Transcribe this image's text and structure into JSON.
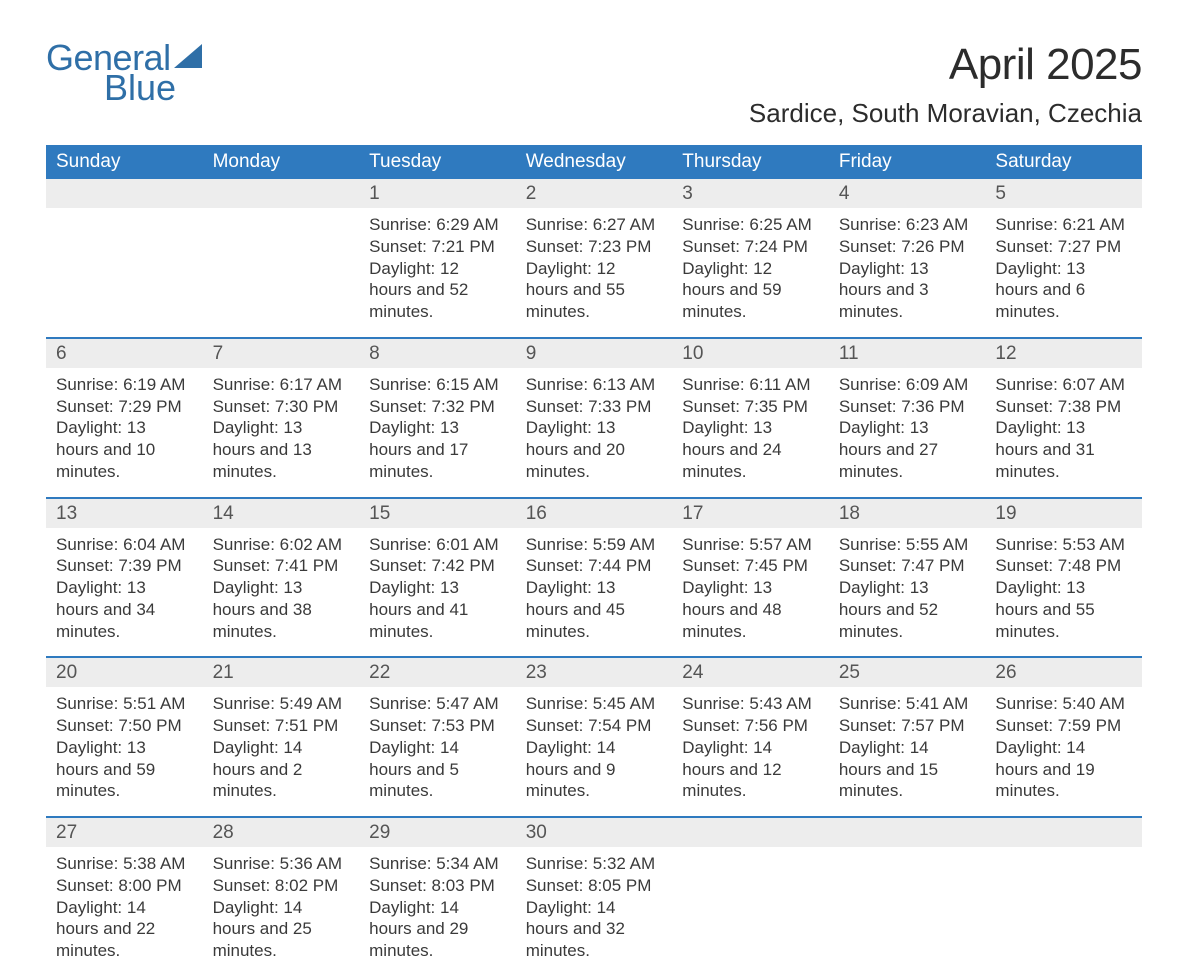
{
  "brand": {
    "word1": "General",
    "word2": "Blue",
    "color": "#2f6fa7",
    "sail_color": "#2f6fa7"
  },
  "title": "April 2025",
  "location": "Sardice, South Moravian, Czechia",
  "colors": {
    "header_bg": "#2f7abf",
    "header_text": "#ffffff",
    "daynum_bg": "#ededed",
    "week_divider": "#2f7abf",
    "body_text": "#3a3a3a",
    "page_bg": "#ffffff"
  },
  "day_headers": [
    "Sunday",
    "Monday",
    "Tuesday",
    "Wednesday",
    "Thursday",
    "Friday",
    "Saturday"
  ],
  "weeks": [
    [
      null,
      null,
      {
        "n": "1",
        "sunrise": "6:29 AM",
        "sunset": "7:21 PM",
        "daylight": "12 hours and 52 minutes."
      },
      {
        "n": "2",
        "sunrise": "6:27 AM",
        "sunset": "7:23 PM",
        "daylight": "12 hours and 55 minutes."
      },
      {
        "n": "3",
        "sunrise": "6:25 AM",
        "sunset": "7:24 PM",
        "daylight": "12 hours and 59 minutes."
      },
      {
        "n": "4",
        "sunrise": "6:23 AM",
        "sunset": "7:26 PM",
        "daylight": "13 hours and 3 minutes."
      },
      {
        "n": "5",
        "sunrise": "6:21 AM",
        "sunset": "7:27 PM",
        "daylight": "13 hours and 6 minutes."
      }
    ],
    [
      {
        "n": "6",
        "sunrise": "6:19 AM",
        "sunset": "7:29 PM",
        "daylight": "13 hours and 10 minutes."
      },
      {
        "n": "7",
        "sunrise": "6:17 AM",
        "sunset": "7:30 PM",
        "daylight": "13 hours and 13 minutes."
      },
      {
        "n": "8",
        "sunrise": "6:15 AM",
        "sunset": "7:32 PM",
        "daylight": "13 hours and 17 minutes."
      },
      {
        "n": "9",
        "sunrise": "6:13 AM",
        "sunset": "7:33 PM",
        "daylight": "13 hours and 20 minutes."
      },
      {
        "n": "10",
        "sunrise": "6:11 AM",
        "sunset": "7:35 PM",
        "daylight": "13 hours and 24 minutes."
      },
      {
        "n": "11",
        "sunrise": "6:09 AM",
        "sunset": "7:36 PM",
        "daylight": "13 hours and 27 minutes."
      },
      {
        "n": "12",
        "sunrise": "6:07 AM",
        "sunset": "7:38 PM",
        "daylight": "13 hours and 31 minutes."
      }
    ],
    [
      {
        "n": "13",
        "sunrise": "6:04 AM",
        "sunset": "7:39 PM",
        "daylight": "13 hours and 34 minutes."
      },
      {
        "n": "14",
        "sunrise": "6:02 AM",
        "sunset": "7:41 PM",
        "daylight": "13 hours and 38 minutes."
      },
      {
        "n": "15",
        "sunrise": "6:01 AM",
        "sunset": "7:42 PM",
        "daylight": "13 hours and 41 minutes."
      },
      {
        "n": "16",
        "sunrise": "5:59 AM",
        "sunset": "7:44 PM",
        "daylight": "13 hours and 45 minutes."
      },
      {
        "n": "17",
        "sunrise": "5:57 AM",
        "sunset": "7:45 PM",
        "daylight": "13 hours and 48 minutes."
      },
      {
        "n": "18",
        "sunrise": "5:55 AM",
        "sunset": "7:47 PM",
        "daylight": "13 hours and 52 minutes."
      },
      {
        "n": "19",
        "sunrise": "5:53 AM",
        "sunset": "7:48 PM",
        "daylight": "13 hours and 55 minutes."
      }
    ],
    [
      {
        "n": "20",
        "sunrise": "5:51 AM",
        "sunset": "7:50 PM",
        "daylight": "13 hours and 59 minutes."
      },
      {
        "n": "21",
        "sunrise": "5:49 AM",
        "sunset": "7:51 PM",
        "daylight": "14 hours and 2 minutes."
      },
      {
        "n": "22",
        "sunrise": "5:47 AM",
        "sunset": "7:53 PM",
        "daylight": "14 hours and 5 minutes."
      },
      {
        "n": "23",
        "sunrise": "5:45 AM",
        "sunset": "7:54 PM",
        "daylight": "14 hours and 9 minutes."
      },
      {
        "n": "24",
        "sunrise": "5:43 AM",
        "sunset": "7:56 PM",
        "daylight": "14 hours and 12 minutes."
      },
      {
        "n": "25",
        "sunrise": "5:41 AM",
        "sunset": "7:57 PM",
        "daylight": "14 hours and 15 minutes."
      },
      {
        "n": "26",
        "sunrise": "5:40 AM",
        "sunset": "7:59 PM",
        "daylight": "14 hours and 19 minutes."
      }
    ],
    [
      {
        "n": "27",
        "sunrise": "5:38 AM",
        "sunset": "8:00 PM",
        "daylight": "14 hours and 22 minutes."
      },
      {
        "n": "28",
        "sunrise": "5:36 AM",
        "sunset": "8:02 PM",
        "daylight": "14 hours and 25 minutes."
      },
      {
        "n": "29",
        "sunrise": "5:34 AM",
        "sunset": "8:03 PM",
        "daylight": "14 hours and 29 minutes."
      },
      {
        "n": "30",
        "sunrise": "5:32 AM",
        "sunset": "8:05 PM",
        "daylight": "14 hours and 32 minutes."
      },
      null,
      null,
      null
    ]
  ],
  "labels": {
    "sunrise": "Sunrise:",
    "sunset": "Sunset:",
    "daylight": "Daylight:"
  }
}
